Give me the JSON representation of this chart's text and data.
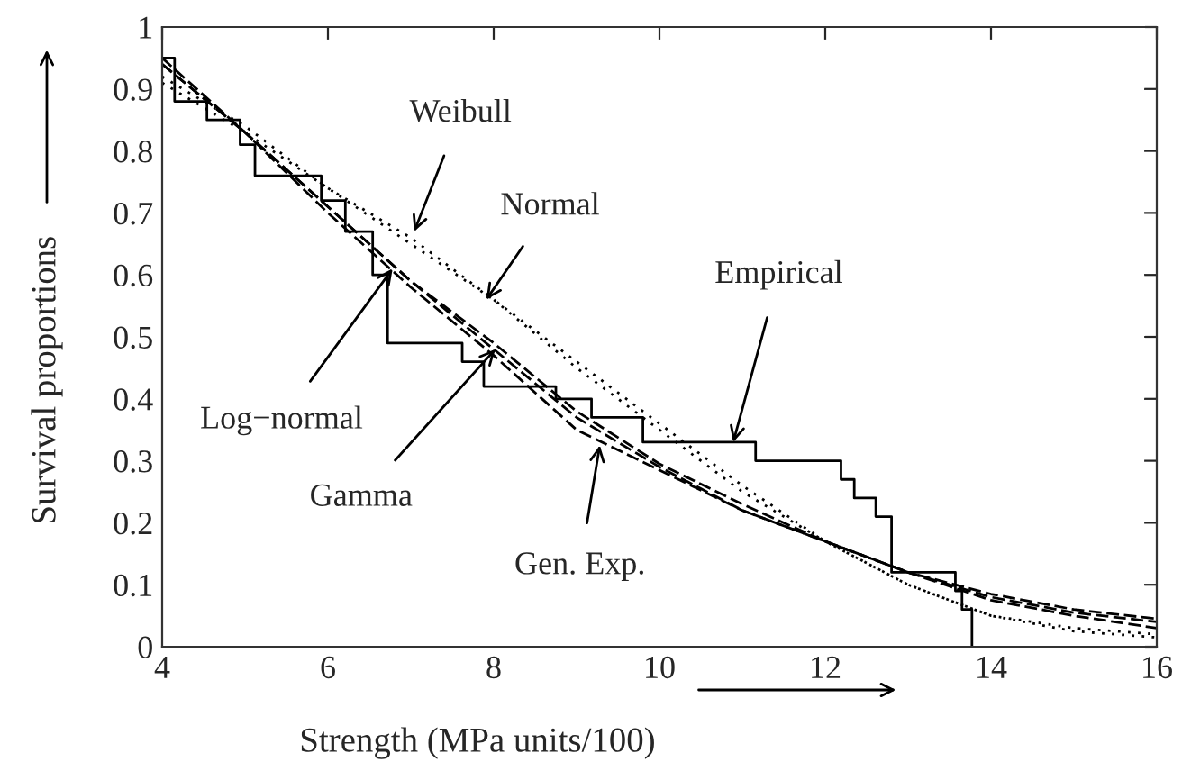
{
  "chart_data": {
    "type": "line",
    "xlabel": "Strength (MPa units/100)",
    "ylabel": "Survival proportions",
    "xlim": [
      4,
      16
    ],
    "ylim": [
      0,
      1
    ],
    "xticks": [
      4,
      6,
      8,
      10,
      12,
      14,
      16
    ],
    "yticks": [
      0,
      0.1,
      0.2,
      0.3,
      0.4,
      0.5,
      0.6,
      0.7,
      0.8,
      0.9,
      1
    ],
    "grid": false,
    "legend": false,
    "series": [
      {
        "type": "step",
        "color": "#000000",
        "line_style": "solid",
        "x": [
          4.0,
          4.15,
          4.54,
          4.94,
          5.12,
          5.92,
          6.21,
          6.54,
          6.72,
          7.62,
          7.88,
          8.75,
          9.18,
          9.8,
          11.16,
          12.19,
          12.35,
          12.61,
          12.8,
          13.57,
          13.65,
          13.77,
          13.77
        ],
        "values": [
          0.95,
          0.88,
          0.85,
          0.81,
          0.76,
          0.72,
          0.67,
          0.6,
          0.49,
          0.46,
          0.42,
          0.4,
          0.37,
          0.33,
          0.3,
          0.27,
          0.24,
          0.21,
          0.12,
          0.09,
          0.06,
          0.0,
          0.0
        ]
      },
      {
        "color": "#000000",
        "line_style": "dotted",
        "x": [
          4,
          5,
          6,
          7,
          8,
          9,
          10,
          11,
          12,
          13,
          14,
          15,
          16
        ],
        "values": [
          0.92,
          0.84,
          0.74,
          0.66,
          0.56,
          0.45,
          0.35,
          0.25,
          0.17,
          0.1,
          0.05,
          0.03,
          0.02
        ]
      },
      {
        "color": "#000000",
        "line_style": "dotted",
        "x": [
          4,
          5,
          6,
          7,
          8,
          9,
          10,
          11,
          12,
          13,
          14,
          15,
          16
        ],
        "values": [
          0.91,
          0.83,
          0.74,
          0.65,
          0.56,
          0.46,
          0.36,
          0.26,
          0.17,
          0.1,
          0.05,
          0.025,
          0.015
        ]
      },
      {
        "color": "#000000",
        "line_style": "dashed",
        "x": [
          4,
          5,
          6,
          7,
          8,
          9,
          10,
          11,
          12,
          13,
          14,
          15,
          16
        ],
        "values": [
          0.94,
          0.83,
          0.71,
          0.59,
          0.49,
          0.38,
          0.295,
          0.23,
          0.17,
          0.12,
          0.08,
          0.055,
          0.04
        ]
      },
      {
        "color": "#000000",
        "line_style": "dashed",
        "x": [
          4,
          5,
          6,
          7,
          8,
          9,
          10,
          11,
          12,
          13,
          14,
          15,
          16
        ],
        "values": [
          0.94,
          0.83,
          0.71,
          0.59,
          0.48,
          0.37,
          0.29,
          0.22,
          0.17,
          0.12,
          0.075,
          0.05,
          0.03
        ]
      },
      {
        "color": "#000000",
        "line_style": "dashed",
        "x": [
          4,
          5,
          6,
          7,
          8,
          9,
          10,
          11,
          12,
          13,
          14,
          15,
          16
        ],
        "values": [
          0.95,
          0.83,
          0.7,
          0.58,
          0.47,
          0.35,
          0.285,
          0.22,
          0.17,
          0.12,
          0.085,
          0.06,
          0.045
        ]
      }
    ],
    "annotations": [
      {
        "text": "Weibull",
        "x": 7.04,
        "y": 0.67
      },
      {
        "text": "Normal",
        "x": 7.91,
        "y": 0.56
      },
      {
        "text": "Empirical",
        "x": 10.89,
        "y": 0.33
      },
      {
        "text": "Log−normal",
        "x": 6.78,
        "y": 0.61
      },
      {
        "text": "Gamma",
        "x": 8.02,
        "y": 0.48
      },
      {
        "text": "Gen. Exp.",
        "x": 9.28,
        "y": 0.325
      }
    ]
  }
}
